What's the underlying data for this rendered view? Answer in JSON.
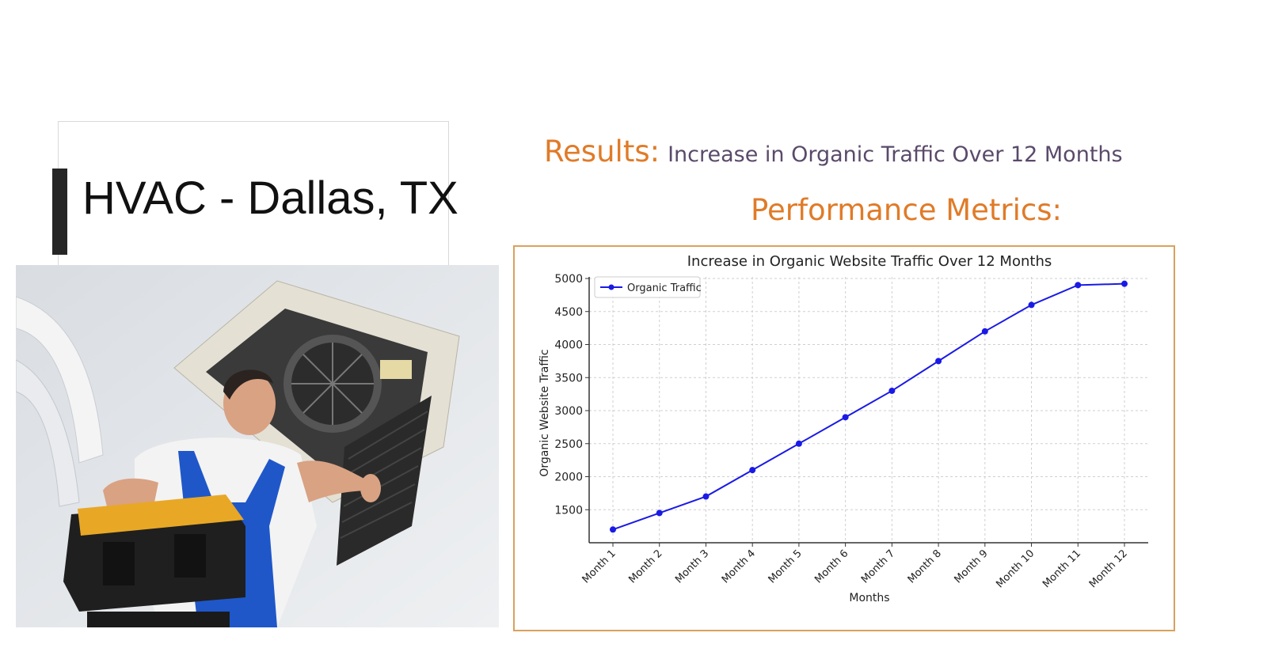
{
  "slide": {
    "title": "HVAC - Dallas, TX",
    "results_label": "Results:",
    "results_text": "Increase in Organic Traffic Over 12 Months",
    "metrics_heading": "Performance Metrics:"
  },
  "colors": {
    "accent_orange": "#e07b28",
    "results_text": "#5a4a6a",
    "frame_border": "#d9a25c",
    "title_bar": "#262626",
    "series_line": "#1a1ae6"
  },
  "chart_data": {
    "type": "line",
    "title": "Increase in Organic Website Traffic Over 12 Months",
    "xlabel": "Months",
    "ylabel": "Organic Website Traffic",
    "categories": [
      "Month 1",
      "Month 2",
      "Month 3",
      "Month 4",
      "Month 5",
      "Month 6",
      "Month 7",
      "Month 8",
      "Month 9",
      "Month 10",
      "Month 11",
      "Month 12"
    ],
    "series": [
      {
        "name": "Organic Traffic",
        "values": [
          1200,
          1450,
          1700,
          2100,
          2500,
          2900,
          3300,
          3750,
          4200,
          4600,
          4900,
          4920
        ]
      }
    ],
    "yticks": [
      1500,
      2000,
      2500,
      3000,
      3500,
      4000,
      4500,
      5000
    ],
    "ylim": [
      1000,
      5000
    ],
    "grid": true,
    "legend": "top-left"
  }
}
